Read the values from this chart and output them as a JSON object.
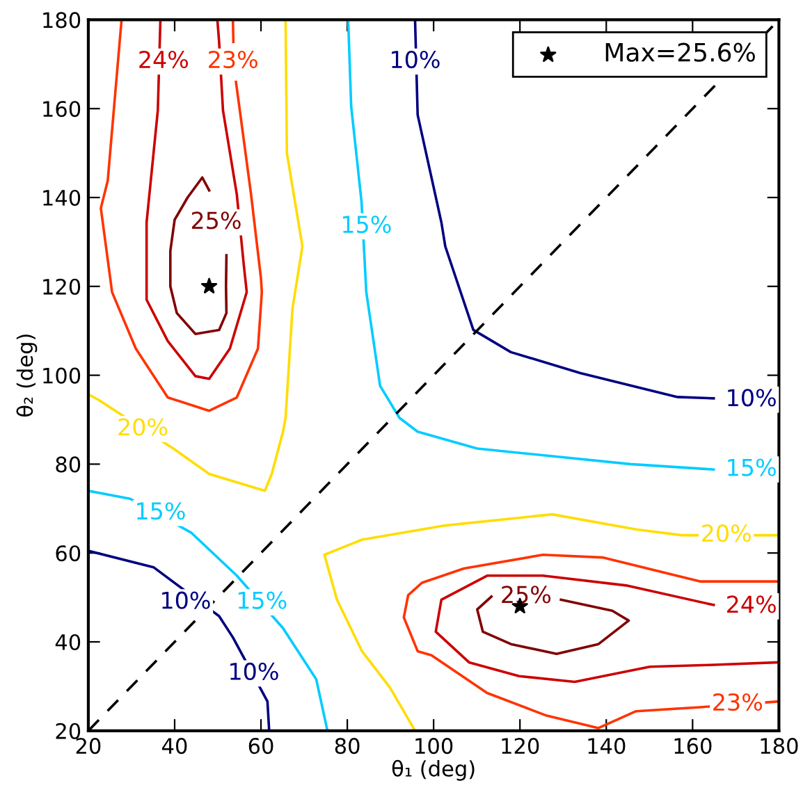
{
  "chart_data": {
    "type": "line",
    "xlabel": "θ₁ (deg)",
    "ylabel": "θ₂ (deg)",
    "xlim": [
      20,
      180
    ],
    "ylim": [
      20,
      180
    ],
    "xticks": [
      20,
      40,
      60,
      80,
      100,
      120,
      140,
      160,
      180
    ],
    "yticks": [
      20,
      40,
      60,
      80,
      100,
      120,
      140,
      160,
      180
    ],
    "grid": false,
    "legend": "top right",
    "marker": "none",
    "line_style": "solid",
    "series": [
      {
        "color": "#ff3300",
        "x": [
          27.7,
          24.5,
          22.9,
          25.5,
          31,
          38.4,
          48,
          54.4,
          59.3,
          60.2,
          60,
          57.7,
          55.1,
          54.2,
          54,
          53.6,
          53.5
        ],
        "values": [
          180,
          143.8,
          137.6,
          118.7,
          106,
          95,
          92,
          95,
          106,
          118.7,
          121.8,
          140.7,
          159.6,
          166,
          null,
          175,
          180
        ]
      },
      {
        "color": "#cc0000",
        "x": [
          36.7,
          36.1,
          33.5,
          33.5,
          38.4,
          44.8,
          48,
          52.8,
          56.7,
          56,
          54.4,
          51.2,
          50.3,
          49.9
        ],
        "values": [
          180,
          159.6,
          134.4,
          117,
          107.7,
          99.8,
          99.2,
          106,
          118.7,
          125,
          140.7,
          159.6,
          175,
          180
        ]
      },
      {
        "color": "#800000",
        "x": [
          52,
          51.9,
          52,
          50.3,
          44.8,
          40.5,
          39,
          39,
          40,
          43,
          46.4,
          48
        ],
        "values": [
          127,
          120,
          114,
          110.2,
          109.3,
          114,
          120,
          128,
          135,
          140,
          144.5,
          141.6
        ]
      },
      {
        "color": "#ffdd00",
        "x": [
          65.7,
          66,
          69.6,
          67.3,
          65.7,
          65.1,
          62.5,
          60.9,
          48,
          40,
          22.3,
          20
        ],
        "values": [
          180,
          150,
          129,
          115,
          90.4,
          87.3,
          77.8,
          74,
          77.8,
          83.3,
          94.5,
          95.7
        ]
      },
      {
        "color": "#ffdd00",
        "x": [
          95.7,
          89.9,
          83.4,
          77.6,
          74.7,
          83.4,
          102.7,
          127.5,
          146.9,
          157.5,
          173.6,
          180
        ],
        "values": [
          20,
          29.7,
          37.9,
          49.5,
          59.6,
          63,
          66.2,
          68.7,
          65.3,
          64,
          64,
          64
        ]
      },
      {
        "color": "#00ccff",
        "x": [
          80.2,
          80.9,
          83.3,
          84.4,
          87.6,
          92.1,
          96.3,
          110.1,
          145.6,
          164.9
        ],
        "values": [
          180,
          160.5,
          139,
          118.7,
          97.6,
          90.4,
          87.3,
          83.5,
          80,
          78.8
        ]
      },
      {
        "color": "#00ccff",
        "x": [
          20,
          29.7,
          43.8,
          54.4,
          65.1,
          72.8,
          75.4
        ],
        "values": [
          74,
          72.2,
          64.6,
          54.9,
          43.1,
          31.6,
          20
        ]
      },
      {
        "color": "#000080",
        "x": [
          95.7,
          96.3,
          101.8,
          102.7,
          109.2,
          117.9,
          134,
          156.5,
          164.9
        ],
        "values": [
          180,
          158.6,
          134.4,
          129,
          110.2,
          105.2,
          100.5,
          95.1,
          94.8
        ]
      },
      {
        "color": "#000080",
        "x": [
          20,
          35.1,
          50.3,
          53.5,
          61.5,
          61.9
        ],
        "values": [
          60.5,
          56.8,
          45.8,
          41,
          26.6,
          20
        ]
      },
      {
        "color": "#ff3300",
        "x": [
          180,
          161.7,
          139.1,
          125.3,
          107,
          97.3,
          94.1,
          93.1,
          96.3,
          99.5,
          112.4,
          126.2,
          138.2,
          146.9,
          161.7,
          180
        ],
        "values": [
          53.6,
          53.6,
          59,
          59.6,
          56.5,
          53.3,
          50.5,
          45.5,
          37.9,
          37,
          28.5,
          23.4,
          20.6,
          24.4,
          25.3,
          26.6
        ]
      },
      {
        "color": "#cc0000",
        "x": [
          180,
          163.9,
          150.1,
          132.7,
          119.8,
          108.2,
          100.5,
          101.8,
          112.4,
          125.3,
          144.6,
          164.9
        ],
        "values": [
          35.4,
          34.8,
          34.4,
          31,
          32.3,
          35.4,
          42.3,
          49.5,
          54.9,
          54.9,
          52.7,
          48.3
        ]
      },
      {
        "color": "#800000",
        "x": [
          113.4,
          110.1,
          111.4,
          117.9,
          128.5,
          138.2,
          145.2,
          141.4,
          129.5
        ],
        "values": [
          50.2,
          47.3,
          42.3,
          39.5,
          37.3,
          39.5,
          44.8,
          47,
          49.5
        ]
      },
      {
        "color": "#000000",
        "line_style": "dashed",
        "x": [
          20,
          180
        ],
        "values": [
          20,
          180
        ]
      },
      {
        "type": "scatter",
        "name": "Max=25.6%",
        "marker": "star",
        "color": "#000000",
        "x": [
          48,
          120
        ],
        "values": [
          120,
          48
        ]
      }
    ],
    "annotations": [
      {
        "text": "24%",
        "x": 37.4,
        "y": 170.6
      },
      {
        "text": "23%",
        "x": 53.5,
        "y": 170.6
      },
      {
        "text": "25%",
        "x": 49.6,
        "y": 134.4
      },
      {
        "text": "10%",
        "x": 95.7,
        "y": 170.6
      },
      {
        "text": "15%",
        "x": 84.4,
        "y": 133.5
      },
      {
        "text": "20%",
        "x": 32.6,
        "y": 87.9
      },
      {
        "text": "15%",
        "x": 36.7,
        "y": 69
      },
      {
        "text": "10%",
        "x": 42.5,
        "y": 48.9
      },
      {
        "text": "15%",
        "x": 60.2,
        "y": 48.9
      },
      {
        "text": "10%",
        "x": 58.3,
        "y": 32.9
      },
      {
        "text": "10%",
        "x": 173.6,
        "y": 94.5
      },
      {
        "text": "15%",
        "x": 173.6,
        "y": 78.8
      },
      {
        "text": "20%",
        "x": 167.8,
        "y": 64
      },
      {
        "text": "24%",
        "x": 173.6,
        "y": 48
      },
      {
        "text": "23%",
        "x": 170.4,
        "y": 26
      },
      {
        "text": "25%",
        "x": 121.4,
        "y": 50.2
      }
    ]
  }
}
